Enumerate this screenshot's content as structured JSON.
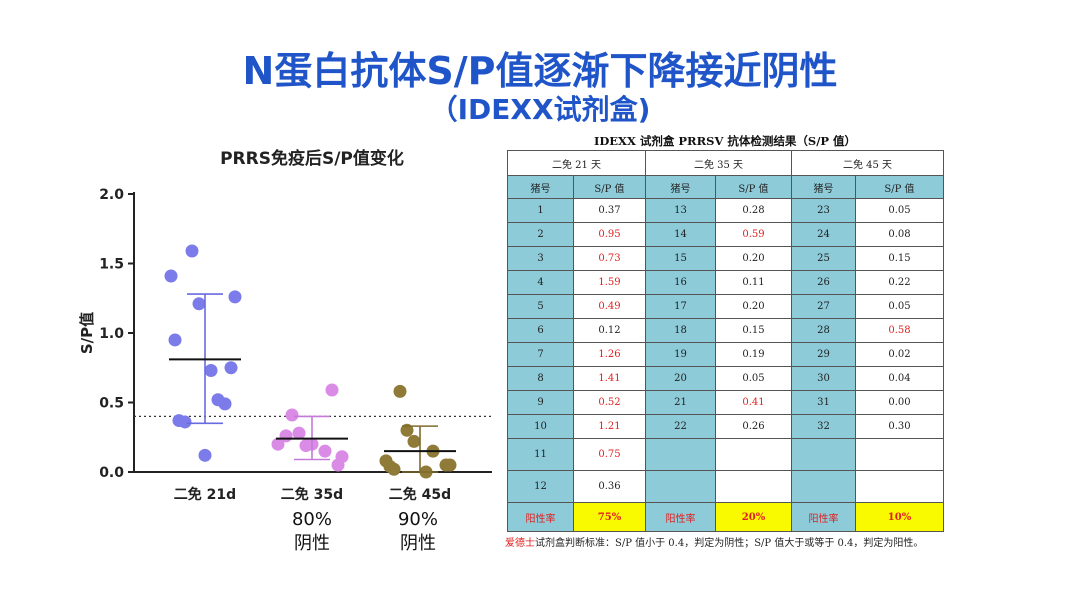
{
  "slide": {
    "title": "N蛋白抗体S/P值逐渐下降接近阴性",
    "subtitle": "（IDEXX试剂盒)"
  },
  "chart_data": {
    "type": "scatter",
    "title": "PRRS免疫后S/P值变化",
    "ylabel": "S/P值",
    "ylim": [
      0,
      2.0
    ],
    "yticks": [
      "0.0",
      "0.5",
      "1.0",
      "1.5",
      "2.0"
    ],
    "threshold": 0.4,
    "categories": [
      "二免 21d",
      "二免 35d",
      "二免 45d"
    ],
    "series": [
      {
        "color": "#7b7bea",
        "mean": 0.81,
        "sd_low": 0.35,
        "sd_high": 1.28,
        "values": [
          0.37,
          0.95,
          0.73,
          1.59,
          0.49,
          0.12,
          1.26,
          1.41,
          0.52,
          1.21,
          0.75,
          0.36
        ]
      },
      {
        "color": "#d98be6",
        "mean": 0.24,
        "sd_low": 0.09,
        "sd_high": 0.4,
        "values": [
          0.28,
          0.59,
          0.2,
          0.11,
          0.2,
          0.15,
          0.19,
          0.05,
          0.41,
          0.26
        ]
      },
      {
        "color": "#8f7b37",
        "mean": 0.15,
        "sd_low": 0.0,
        "sd_high": 0.33,
        "values": [
          0.05,
          0.08,
          0.15,
          0.22,
          0.05,
          0.58,
          0.02,
          0.04,
          0.0,
          0.3
        ]
      }
    ],
    "annotations": [
      {
        "value": "80%",
        "label": "阴性"
      },
      {
        "value": "90%",
        "label": "阴性"
      }
    ]
  },
  "table": {
    "caption": "IDEXX 试剂盒 PRRSV 抗体检测结果（S/P 值）",
    "groups": [
      "二免 21 天",
      "二免 35 天",
      "二免 45 天"
    ],
    "col_id": "猪号",
    "col_sp": "S/P 值",
    "rows": [
      [
        {
          "id": "1",
          "sp": "0.37",
          "pos": false
        },
        {
          "id": "13",
          "sp": "0.28",
          "pos": false
        },
        {
          "id": "23",
          "sp": "0.05",
          "pos": false
        }
      ],
      [
        {
          "id": "2",
          "sp": "0.95",
          "pos": true
        },
        {
          "id": "14",
          "sp": "0.59",
          "pos": true
        },
        {
          "id": "24",
          "sp": "0.08",
          "pos": false
        }
      ],
      [
        {
          "id": "3",
          "sp": "0.73",
          "pos": true
        },
        {
          "id": "15",
          "sp": "0.20",
          "pos": false
        },
        {
          "id": "25",
          "sp": "0.15",
          "pos": false
        }
      ],
      [
        {
          "id": "4",
          "sp": "1.59",
          "pos": true
        },
        {
          "id": "16",
          "sp": "0.11",
          "pos": false
        },
        {
          "id": "26",
          "sp": "0.22",
          "pos": false
        }
      ],
      [
        {
          "id": "5",
          "sp": "0.49",
          "pos": true
        },
        {
          "id": "17",
          "sp": "0.20",
          "pos": false
        },
        {
          "id": "27",
          "sp": "0.05",
          "pos": false
        }
      ],
      [
        {
          "id": "6",
          "sp": "0.12",
          "pos": false
        },
        {
          "id": "18",
          "sp": "0.15",
          "pos": false
        },
        {
          "id": "28",
          "sp": "0.58",
          "pos": true
        }
      ],
      [
        {
          "id": "7",
          "sp": "1.26",
          "pos": true
        },
        {
          "id": "19",
          "sp": "0.19",
          "pos": false
        },
        {
          "id": "29",
          "sp": "0.02",
          "pos": false
        }
      ],
      [
        {
          "id": "8",
          "sp": "1.41",
          "pos": true
        },
        {
          "id": "20",
          "sp": "0.05",
          "pos": false
        },
        {
          "id": "30",
          "sp": "0.04",
          "pos": false
        }
      ],
      [
        {
          "id": "9",
          "sp": "0.52",
          "pos": true
        },
        {
          "id": "21",
          "sp": "0.41",
          "pos": true
        },
        {
          "id": "31",
          "sp": "0.00",
          "pos": false
        }
      ],
      [
        {
          "id": "10",
          "sp": "1.21",
          "pos": true
        },
        {
          "id": "22",
          "sp": "0.26",
          "pos": false
        },
        {
          "id": "32",
          "sp": "0.30",
          "pos": false
        }
      ],
      [
        {
          "id": "11",
          "sp": "0.75",
          "pos": true
        },
        {
          "id": "",
          "sp": "",
          "pos": false
        },
        {
          "id": "",
          "sp": "",
          "pos": false
        }
      ],
      [
        {
          "id": "12",
          "sp": "0.36",
          "pos": false
        },
        {
          "id": "",
          "sp": "",
          "pos": false
        },
        {
          "id": "",
          "sp": "",
          "pos": false
        }
      ]
    ],
    "rate_label": "阳性率",
    "rates": [
      "75%",
      "20%",
      "10%"
    ],
    "note_brand": "爱德士",
    "note_text": "试剂盒判断标准：S/P 值小于 0.4，判定为阴性；S/P 值大于或等于 0.4，判定为阳性。"
  },
  "colors": {
    "title": "#1f55c8",
    "table_header": "#8ecbd9",
    "positive_text": "#e02020",
    "rate_bg": "#f9f900"
  }
}
